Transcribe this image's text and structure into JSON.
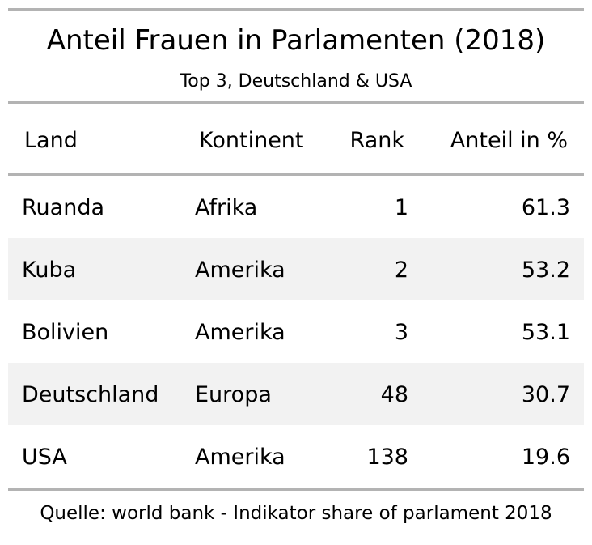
{
  "chart_data": {
    "type": "table",
    "title": "Anteil Frauen in Parlamenten (2018)",
    "subtitle": "Top 3, Deutschland & USA",
    "columns": [
      "Land",
      "Kontinent",
      "Rank",
      "Anteil in %"
    ],
    "rows": [
      {
        "land": "Ruanda",
        "kontinent": "Afrika",
        "rank": "1",
        "anteil": "61.3"
      },
      {
        "land": "Kuba",
        "kontinent": "Amerika",
        "rank": "2",
        "anteil": "53.2"
      },
      {
        "land": "Bolivien",
        "kontinent": "Amerika",
        "rank": "3",
        "anteil": "53.1"
      },
      {
        "land": "Deutschland",
        "kontinent": "Europa",
        "rank": "48",
        "anteil": "30.7"
      },
      {
        "land": "USA",
        "kontinent": "Amerika",
        "rank": "138",
        "anteil": "19.6"
      }
    ],
    "source": "Quelle: world bank - Indikator share of parlament 2018"
  },
  "colors": {
    "rule": "#b3b3b3",
    "stripe": "#f2f2f2",
    "text": "#000000"
  }
}
